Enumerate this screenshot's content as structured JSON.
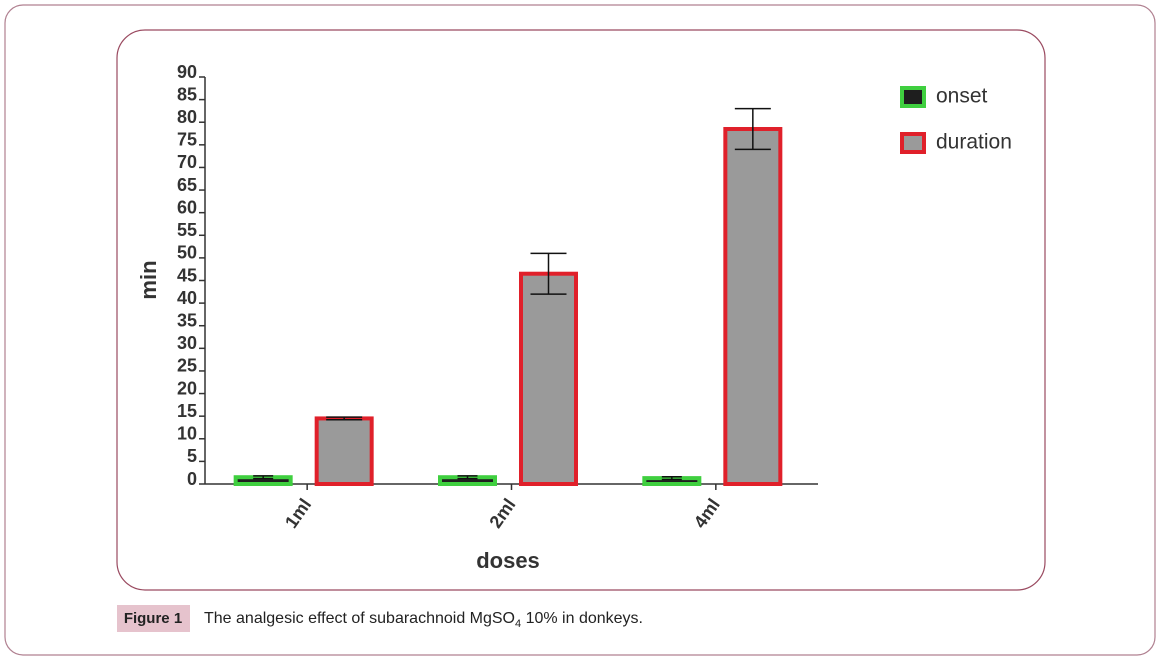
{
  "chart_data": {
    "type": "bar",
    "categories": [
      "1ml",
      "2ml",
      "4ml"
    ],
    "series": [
      {
        "name": "onset",
        "color": "#1e1e1e",
        "edgecolor": "#3fcf3f",
        "values": [
          1.5,
          1.5,
          1.3
        ],
        "errors": [
          0.3,
          0.3,
          0.3
        ]
      },
      {
        "name": "duration",
        "color": "#9a9a9a",
        "edgecolor": "#e0202a",
        "values": [
          14.5,
          46.5,
          78.5
        ],
        "errors": [
          0.3,
          4.5,
          4.5
        ]
      }
    ],
    "ylim": [
      0,
      90
    ],
    "yticks": [
      0,
      5,
      10,
      15,
      20,
      25,
      30,
      35,
      40,
      45,
      50,
      55,
      60,
      65,
      70,
      75,
      80,
      85,
      90
    ],
    "ylabel": "min",
    "xlabel": "doses",
    "legend": "upper right",
    "caption": {
      "label": "Figure 1",
      "text": [
        "The analgesic effect of subarachnoid MgSO",
        "4",
        " 10% in donkeys."
      ]
    }
  }
}
